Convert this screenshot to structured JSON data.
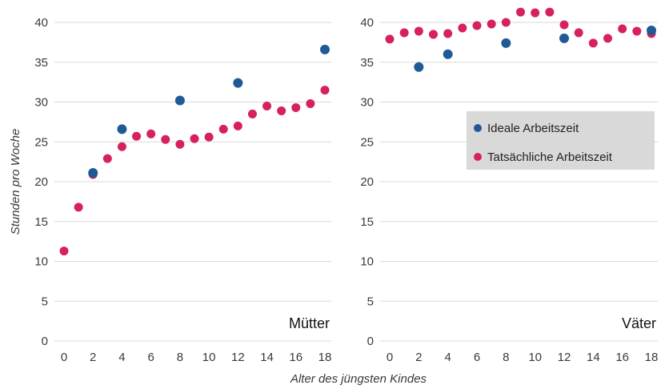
{
  "chart_data": {
    "type": "scatter",
    "ylabel": "Stunden pro Woche",
    "xlabel": "Alter des jüngsten Kindes",
    "x_ticks": [
      "0",
      "2",
      "4",
      "6",
      "8",
      "10",
      "12",
      "14",
      "16",
      "18"
    ],
    "y_ticks": [
      "0",
      "5",
      "10",
      "15",
      "20",
      "25",
      "30",
      "35",
      "40"
    ],
    "xlim": [
      0,
      18
    ],
    "ylim": [
      0,
      40
    ],
    "grid": "horizontal",
    "legend": {
      "placement": "right-panel-center",
      "entries": [
        "Ideale Arbeitszeit",
        "Tatsächliche Arbeitszeit"
      ]
    },
    "colors": {
      "ideal": "#1f5a96",
      "actual": "#d6215e",
      "legend_bg": "#d9d9d9",
      "grid": "#d9d9d9"
    },
    "panels": [
      {
        "label": "Mütter",
        "series": [
          {
            "name": "Ideale Arbeitszeit",
            "key": "ideal",
            "x": [
              2,
              4,
              8,
              12,
              18
            ],
            "y": [
              21.1,
              26.6,
              30.2,
              32.4,
              36.6
            ]
          },
          {
            "name": "Tatsächliche Arbeitszeit",
            "key": "actual",
            "x": [
              0,
              1,
              2,
              3,
              4,
              5,
              6,
              7,
              8,
              9,
              10,
              11,
              12,
              13,
              14,
              15,
              16,
              17,
              18
            ],
            "y": [
              11.3,
              16.8,
              20.9,
              22.9,
              24.4,
              25.7,
              26.0,
              25.3,
              24.7,
              25.4,
              25.6,
              26.6,
              27.0,
              28.5,
              29.5,
              28.9,
              29.3,
              29.8,
              31.5
            ]
          }
        ]
      },
      {
        "label": "Väter",
        "series": [
          {
            "name": "Ideale Arbeitszeit",
            "key": "ideal",
            "x": [
              2,
              4,
              8,
              12,
              18
            ],
            "y": [
              34.4,
              36.0,
              37.4,
              38.0,
              39.0
            ]
          },
          {
            "name": "Tatsächliche Arbeitszeit",
            "key": "actual",
            "x": [
              0,
              1,
              2,
              3,
              4,
              5,
              6,
              7,
              8,
              9,
              10,
              11,
              12,
              13,
              14,
              15,
              16,
              17,
              18
            ],
            "y": [
              37.9,
              38.7,
              38.9,
              38.5,
              38.6,
              39.3,
              39.6,
              39.8,
              40.0,
              41.3,
              41.2,
              41.3,
              39.7,
              38.7,
              37.4,
              38.0,
              39.2,
              38.9,
              38.6
            ]
          }
        ]
      }
    ]
  }
}
